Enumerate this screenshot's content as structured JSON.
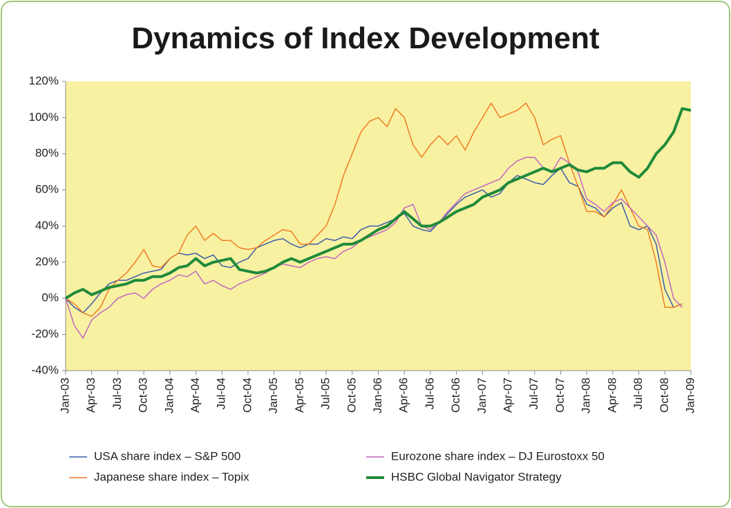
{
  "chart_data": {
    "type": "line",
    "title": "Dynamics of Index Development",
    "categories": [
      "Jan-03",
      null,
      null,
      "Apr-03",
      null,
      null,
      "Jul-03",
      null,
      null,
      "Oct-03",
      null,
      null,
      "Jan-04",
      null,
      null,
      "Apr-04",
      null,
      null,
      "Jul-04",
      null,
      null,
      "Oct-04",
      null,
      null,
      "Jan-05",
      null,
      null,
      "Apr-05",
      null,
      null,
      "Jul-05",
      null,
      null,
      "Oct-05",
      null,
      null,
      "Jan-06",
      null,
      null,
      "Apr-06",
      null,
      null,
      "Jul-06",
      null,
      null,
      "Oct-06",
      null,
      null,
      "Jan-07",
      null,
      null,
      "Apr-07",
      null,
      null,
      "Jul-07",
      null,
      null,
      "Oct-07",
      null,
      null,
      "Jan-08",
      null,
      null,
      "Apr-08",
      null,
      null,
      "Jul-08",
      null,
      null,
      "Oct-08",
      null,
      null,
      "Jan-09"
    ],
    "series": [
      {
        "name": "USA share index – S&P 500",
        "color": "#3a5ca8",
        "values": [
          0,
          -5,
          -8,
          -3,
          3,
          8,
          10,
          10,
          12,
          14,
          15,
          16,
          22,
          25,
          24,
          25,
          22,
          24,
          18,
          17,
          20,
          22,
          28,
          30,
          32,
          33,
          30,
          28,
          30,
          30,
          33,
          32,
          34,
          33,
          38,
          40,
          40,
          42,
          44,
          47,
          40,
          38,
          37,
          42,
          47,
          52,
          56,
          58,
          60,
          56,
          58,
          64,
          68,
          66,
          64,
          63,
          68,
          72,
          64,
          62,
          52,
          50,
          45,
          50,
          53,
          40,
          38,
          40,
          30,
          5,
          -5,
          -3,
          null
        ]
      },
      {
        "name": "Japanese share index – Topix",
        "color": "#f07c22",
        "values": [
          0,
          -3,
          -8,
          -10,
          -5,
          5,
          10,
          14,
          20,
          27,
          18,
          17,
          22,
          25,
          35,
          40,
          32,
          36,
          32,
          32,
          28,
          27,
          28,
          32,
          35,
          38,
          37,
          30,
          30,
          35,
          40,
          52,
          68,
          80,
          92,
          98,
          100,
          95,
          105,
          100,
          85,
          78,
          85,
          90,
          85,
          90,
          82,
          92,
          100,
          108,
          100,
          102,
          104,
          108,
          100,
          85,
          88,
          90,
          75,
          62,
          48,
          48,
          45,
          52,
          60,
          50,
          40,
          38,
          20,
          -5,
          -5,
          -3,
          null
        ]
      },
      {
        "name": "Eurozone share index – DJ Eurostoxx 50",
        "color": "#c066c0",
        "values": [
          0,
          -15,
          -22,
          -12,
          -8,
          -5,
          0,
          2,
          3,
          0,
          5,
          8,
          10,
          13,
          12,
          15,
          8,
          10,
          7,
          5,
          8,
          10,
          12,
          14,
          17,
          19,
          18,
          17,
          20,
          22,
          23,
          22,
          26,
          28,
          32,
          34,
          36,
          38,
          42,
          50,
          52,
          40,
          38,
          42,
          48,
          53,
          58,
          60,
          62,
          64,
          66,
          72,
          76,
          78,
          78,
          72,
          70,
          78,
          75,
          70,
          55,
          52,
          48,
          53,
          55,
          50,
          45,
          40,
          35,
          20,
          0,
          -5,
          null
        ]
      },
      {
        "name": "HSBC Global Navigator Strategy",
        "color": "#1f8a3a",
        "values": [
          0,
          3,
          5,
          2,
          4,
          6,
          7,
          8,
          10,
          10,
          12,
          12,
          14,
          17,
          18,
          22,
          18,
          20,
          21,
          22,
          16,
          15,
          14,
          15,
          17,
          20,
          22,
          20,
          22,
          24,
          26,
          28,
          30,
          30,
          32,
          35,
          38,
          40,
          44,
          48,
          44,
          40,
          40,
          42,
          45,
          48,
          50,
          52,
          56,
          58,
          60,
          64,
          66,
          68,
          70,
          72,
          70,
          72,
          74,
          71,
          70,
          72,
          72,
          75,
          75,
          70,
          67,
          72,
          80,
          85,
          92,
          105,
          104
        ]
      }
    ],
    "ylim": [
      -40,
      120
    ],
    "yticks": [
      {
        "value": -40,
        "label": "-40%"
      },
      {
        "value": -20,
        "label": "-20%"
      },
      {
        "value": 0,
        "label": "0%"
      },
      {
        "value": 20,
        "label": "20%"
      },
      {
        "value": 40,
        "label": "40%"
      },
      {
        "value": 60,
        "label": "60%"
      },
      {
        "value": 80,
        "label": "80%"
      },
      {
        "value": 100,
        "label": "100%"
      },
      {
        "value": 120,
        "label": "120%"
      }
    ],
    "background": "#f8f1a2"
  }
}
